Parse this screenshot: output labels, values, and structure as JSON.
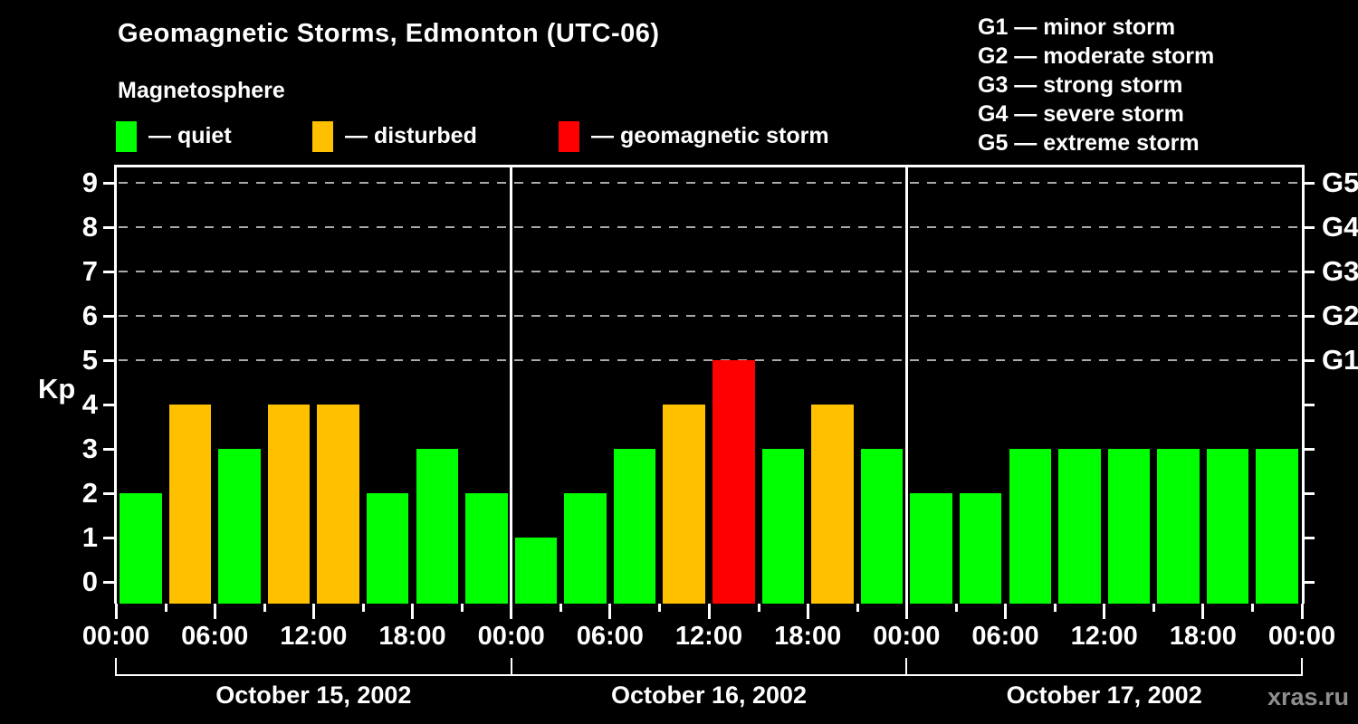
{
  "header": {
    "title": "Geomagnetic Storms, Edmonton (UTC-06)",
    "subtitle": "Magnetosphere"
  },
  "legend": [
    {
      "name": "quiet",
      "label": "— quiet",
      "color": "#00ff00"
    },
    {
      "name": "disturbed",
      "label": "— disturbed",
      "color": "#ffc000"
    },
    {
      "name": "storm",
      "label": "— geomagnetic storm",
      "color": "#ff0000"
    }
  ],
  "g_legend": [
    "G1 — minor storm",
    "G2 — moderate storm",
    "G3 — strong storm",
    "G4 — severe storm",
    "G5 — extreme storm"
  ],
  "y_axis": {
    "label": "Kp",
    "ticks": [
      0,
      1,
      2,
      3,
      4,
      5,
      6,
      7,
      8,
      9
    ]
  },
  "right_axis": {
    "labels": [
      {
        "text": "G5",
        "value": 9
      },
      {
        "text": "G4",
        "value": 8
      },
      {
        "text": "G3",
        "value": 7
      },
      {
        "text": "G2",
        "value": 6
      },
      {
        "text": "G1",
        "value": 5
      }
    ]
  },
  "x_axis": {
    "time_labels": [
      "00:00",
      "06:00",
      "12:00",
      "18:00",
      "00:00",
      "06:00",
      "12:00",
      "18:00",
      "00:00",
      "06:00",
      "12:00",
      "18:00",
      "00:00"
    ]
  },
  "watermark": "xras.ru",
  "chart_data": {
    "type": "bar",
    "title": "Geomagnetic Storms, Edmonton (UTC-06)",
    "subtitle": "Magnetosphere",
    "ylabel": "Kp",
    "ylim": [
      0,
      9
    ],
    "interval_hours": 3,
    "bars_per_day": 8,
    "gridlines_at": [
      5,
      6,
      7,
      8,
      9
    ],
    "legend_position": "top",
    "days": [
      {
        "date": "October 15, 2002",
        "kp": [
          2,
          4,
          3,
          4,
          4,
          2,
          3,
          2
        ]
      },
      {
        "date": "October 16, 2002",
        "kp": [
          1,
          2,
          3,
          4,
          5,
          3,
          4,
          3
        ]
      },
      {
        "date": "October 17, 2002",
        "kp": [
          2,
          2,
          3,
          3,
          3,
          3,
          3,
          3
        ]
      }
    ],
    "color_rule": {
      "quiet_max_kp": 3,
      "disturbed_kp": 4,
      "storm_min_kp": 5
    },
    "right_axis_map": {
      "G1": 5,
      "G2": 6,
      "G3": 7,
      "G4": 8,
      "G5": 9
    },
    "colors": {
      "quiet": "#00ff00",
      "disturbed": "#ffc000",
      "storm": "#ff0000",
      "background": "#000000",
      "text": "#ffffff",
      "grid": "#aaaaaa",
      "watermark": "#8e8e8e"
    }
  }
}
